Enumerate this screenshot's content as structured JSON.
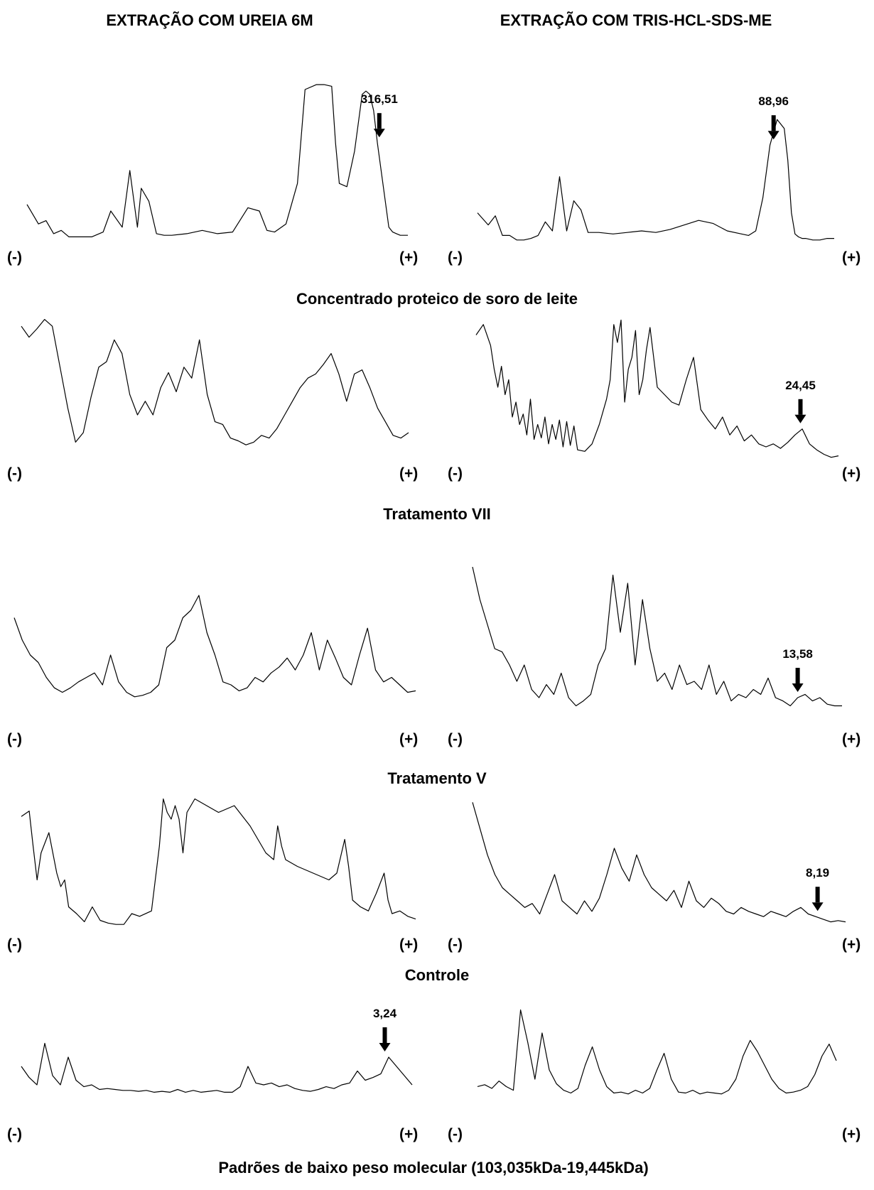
{
  "column_titles": [
    "EXTRAÇÃO COM UREIA 6M",
    "EXTRAÇÃO COM TRIS-HCL-SDS-ME"
  ],
  "pole_labels": {
    "negative": "(-)",
    "positive": "(+)"
  },
  "row_titles": [
    "Concentrado proteico de soro de leite",
    "Tratamento VII",
    "Tratamento V",
    "Controle",
    "Padrões de baixo peso molecular (103,035kDa-19,445kDa)"
  ],
  "chart_data": [
    {
      "type": "line",
      "name": "Concentrado proteico de soro de leite — EXTRAÇÃO COM UREIA 6M",
      "x": [
        0.0,
        0.03,
        0.05,
        0.07,
        0.09,
        0.11,
        0.13,
        0.17,
        0.2,
        0.22,
        0.25,
        0.27,
        0.29,
        0.3,
        0.32,
        0.34,
        0.36,
        0.38,
        0.42,
        0.46,
        0.5,
        0.54,
        0.58,
        0.61,
        0.63,
        0.65,
        0.68,
        0.71,
        0.73,
        0.76,
        0.78,
        0.8,
        0.81,
        0.82,
        0.84,
        0.86,
        0.88,
        0.89,
        0.9,
        0.91,
        0.92,
        0.95,
        0.96,
        0.97,
        0.98,
        0.99,
        1.0
      ],
      "y": [
        0.22,
        0.1,
        0.12,
        0.04,
        0.06,
        0.02,
        0.02,
        0.02,
        0.05,
        0.18,
        0.08,
        0.43,
        0.08,
        0.32,
        0.24,
        0.04,
        0.03,
        0.03,
        0.04,
        0.06,
        0.04,
        0.05,
        0.2,
        0.18,
        0.06,
        0.05,
        0.1,
        0.35,
        0.93,
        0.96,
        0.96,
        0.95,
        0.6,
        0.35,
        0.33,
        0.55,
        0.9,
        0.92,
        0.9,
        0.8,
        0.6,
        0.08,
        0.05,
        0.04,
        0.03,
        0.03,
        0.03
      ],
      "marked_peak": {
        "label": "316,51",
        "x": 0.925
      }
    },
    {
      "type": "line",
      "name": "Concentrado proteico de soro de leite — EXTRAÇÃO COM TRIS-HCL-SDS-ME",
      "x": [
        0.0,
        0.03,
        0.05,
        0.07,
        0.09,
        0.11,
        0.13,
        0.15,
        0.17,
        0.19,
        0.21,
        0.23,
        0.25,
        0.27,
        0.29,
        0.31,
        0.34,
        0.38,
        0.42,
        0.46,
        0.5,
        0.54,
        0.58,
        0.62,
        0.66,
        0.7,
        0.74,
        0.76,
        0.78,
        0.8,
        0.82,
        0.84,
        0.86,
        0.87,
        0.88,
        0.89,
        0.9,
        0.91,
        0.92,
        0.94,
        0.96,
        0.98,
        1.0
      ],
      "y": [
        0.2,
        0.12,
        0.18,
        0.05,
        0.05,
        0.02,
        0.02,
        0.03,
        0.05,
        0.14,
        0.08,
        0.44,
        0.08,
        0.28,
        0.22,
        0.07,
        0.07,
        0.06,
        0.07,
        0.08,
        0.07,
        0.09,
        0.12,
        0.15,
        0.13,
        0.08,
        0.06,
        0.05,
        0.08,
        0.3,
        0.65,
        0.82,
        0.76,
        0.55,
        0.2,
        0.06,
        0.04,
        0.03,
        0.03,
        0.02,
        0.02,
        0.03,
        0.03
      ],
      "marked_peak": {
        "label": "88,96",
        "x": 0.83
      }
    },
    {
      "type": "line",
      "name": "Tratamento VII — EXTRAÇÃO COM UREIA 6M",
      "x": [
        0.0,
        0.02,
        0.04,
        0.06,
        0.08,
        0.1,
        0.12,
        0.14,
        0.16,
        0.18,
        0.2,
        0.22,
        0.24,
        0.26,
        0.28,
        0.3,
        0.32,
        0.34,
        0.36,
        0.38,
        0.4,
        0.42,
        0.44,
        0.46,
        0.48,
        0.5,
        0.52,
        0.54,
        0.56,
        0.58,
        0.6,
        0.62,
        0.64,
        0.66,
        0.68,
        0.7,
        0.72,
        0.74,
        0.76,
        0.78,
        0.8,
        0.82,
        0.84,
        0.86,
        0.88,
        0.9,
        0.92,
        0.94,
        0.96,
        0.98,
        1.0
      ],
      "y": [
        0.9,
        0.82,
        0.88,
        0.95,
        0.9,
        0.6,
        0.3,
        0.05,
        0.12,
        0.38,
        0.6,
        0.64,
        0.8,
        0.7,
        0.4,
        0.25,
        0.35,
        0.25,
        0.45,
        0.56,
        0.42,
        0.6,
        0.52,
        0.8,
        0.4,
        0.2,
        0.18,
        0.08,
        0.06,
        0.03,
        0.05,
        0.1,
        0.08,
        0.15,
        0.25,
        0.35,
        0.45,
        0.52,
        0.55,
        0.62,
        0.7,
        0.55,
        0.35,
        0.55,
        0.58,
        0.45,
        0.3,
        0.2,
        0.1,
        0.08,
        0.12
      ]
    },
    {
      "type": "line",
      "name": "Tratamento VII — EXTRAÇÃO COM TRIS-HCL-SDS-ME",
      "x": [
        0.0,
        0.02,
        0.04,
        0.05,
        0.06,
        0.07,
        0.08,
        0.09,
        0.1,
        0.11,
        0.12,
        0.13,
        0.14,
        0.15,
        0.16,
        0.17,
        0.18,
        0.19,
        0.2,
        0.21,
        0.22,
        0.23,
        0.24,
        0.25,
        0.26,
        0.27,
        0.28,
        0.3,
        0.32,
        0.34,
        0.36,
        0.37,
        0.38,
        0.39,
        0.4,
        0.41,
        0.42,
        0.43,
        0.44,
        0.45,
        0.46,
        0.47,
        0.48,
        0.5,
        0.52,
        0.54,
        0.56,
        0.58,
        0.6,
        0.62,
        0.64,
        0.66,
        0.68,
        0.7,
        0.72,
        0.74,
        0.76,
        0.78,
        0.8,
        0.82,
        0.84,
        0.86,
        0.88,
        0.9,
        0.92,
        0.94,
        0.96,
        0.98,
        1.0
      ],
      "y": [
        0.85,
        0.92,
        0.78,
        0.62,
        0.5,
        0.64,
        0.45,
        0.55,
        0.3,
        0.4,
        0.25,
        0.32,
        0.18,
        0.42,
        0.15,
        0.25,
        0.16,
        0.3,
        0.12,
        0.25,
        0.15,
        0.28,
        0.1,
        0.27,
        0.11,
        0.24,
        0.08,
        0.07,
        0.12,
        0.25,
        0.42,
        0.55,
        0.92,
        0.8,
        0.95,
        0.4,
        0.62,
        0.7,
        0.88,
        0.45,
        0.55,
        0.75,
        0.9,
        0.5,
        0.45,
        0.4,
        0.38,
        0.55,
        0.7,
        0.35,
        0.28,
        0.22,
        0.3,
        0.18,
        0.24,
        0.14,
        0.18,
        0.12,
        0.1,
        0.12,
        0.09,
        0.13,
        0.18,
        0.22,
        0.12,
        0.08,
        0.05,
        0.03,
        0.04
      ],
      "marked_peak": {
        "label": "24,45",
        "x": 0.895
      }
    },
    {
      "type": "line",
      "name": "Tratamento V — EXTRAÇÃO COM UREIA 6M",
      "x": [
        0.0,
        0.02,
        0.04,
        0.06,
        0.08,
        0.1,
        0.12,
        0.14,
        0.16,
        0.18,
        0.2,
        0.22,
        0.24,
        0.26,
        0.28,
        0.3,
        0.32,
        0.34,
        0.36,
        0.38,
        0.4,
        0.42,
        0.44,
        0.46,
        0.48,
        0.5,
        0.52,
        0.54,
        0.56,
        0.58,
        0.6,
        0.62,
        0.64,
        0.66,
        0.68,
        0.7,
        0.72,
        0.74,
        0.76,
        0.78,
        0.8,
        0.82,
        0.84,
        0.86,
        0.88,
        0.9,
        0.92,
        0.94,
        0.96,
        0.98,
        1.0
      ],
      "y": [
        0.55,
        0.4,
        0.3,
        0.25,
        0.15,
        0.08,
        0.05,
        0.08,
        0.12,
        0.15,
        0.18,
        0.1,
        0.3,
        0.12,
        0.05,
        0.02,
        0.03,
        0.05,
        0.1,
        0.35,
        0.4,
        0.55,
        0.6,
        0.7,
        0.45,
        0.3,
        0.12,
        0.1,
        0.06,
        0.08,
        0.15,
        0.12,
        0.18,
        0.22,
        0.28,
        0.2,
        0.3,
        0.45,
        0.2,
        0.4,
        0.28,
        0.15,
        0.1,
        0.3,
        0.48,
        0.2,
        0.12,
        0.15,
        0.1,
        0.05,
        0.06
      ]
    },
    {
      "type": "line",
      "name": "Tratamento V — EXTRAÇÃO COM TRIS-HCL-SDS-ME",
      "x": [
        0.0,
        0.02,
        0.04,
        0.06,
        0.08,
        0.1,
        0.12,
        0.14,
        0.16,
        0.18,
        0.2,
        0.22,
        0.24,
        0.26,
        0.28,
        0.3,
        0.32,
        0.34,
        0.36,
        0.38,
        0.4,
        0.42,
        0.44,
        0.46,
        0.48,
        0.5,
        0.52,
        0.54,
        0.56,
        0.58,
        0.6,
        0.62,
        0.64,
        0.66,
        0.68,
        0.7,
        0.72,
        0.74,
        0.76,
        0.78,
        0.8,
        0.82,
        0.84,
        0.86,
        0.88,
        0.9,
        0.92,
        0.94,
        0.96,
        0.98,
        1.0
      ],
      "y": [
        0.9,
        0.7,
        0.55,
        0.4,
        0.38,
        0.3,
        0.2,
        0.3,
        0.15,
        0.1,
        0.18,
        0.12,
        0.25,
        0.1,
        0.05,
        0.08,
        0.12,
        0.3,
        0.4,
        0.85,
        0.5,
        0.8,
        0.3,
        0.7,
        0.4,
        0.2,
        0.25,
        0.15,
        0.3,
        0.18,
        0.2,
        0.15,
        0.3,
        0.12,
        0.2,
        0.08,
        0.12,
        0.1,
        0.15,
        0.12,
        0.22,
        0.1,
        0.08,
        0.05,
        0.1,
        0.12,
        0.08,
        0.1,
        0.06,
        0.05,
        0.05
      ],
      "marked_peak": {
        "label": "13,58",
        "x": 0.88
      }
    },
    {
      "type": "line",
      "name": "Controle — EXTRAÇÃO COM UREIA 6M",
      "x": [
        0.0,
        0.02,
        0.03,
        0.04,
        0.05,
        0.07,
        0.09,
        0.1,
        0.11,
        0.12,
        0.14,
        0.16,
        0.18,
        0.2,
        0.22,
        0.24,
        0.26,
        0.28,
        0.3,
        0.33,
        0.35,
        0.36,
        0.37,
        0.38,
        0.39,
        0.4,
        0.41,
        0.42,
        0.44,
        0.47,
        0.5,
        0.54,
        0.58,
        0.62,
        0.64,
        0.65,
        0.66,
        0.67,
        0.7,
        0.74,
        0.78,
        0.8,
        0.82,
        0.83,
        0.84,
        0.86,
        0.88,
        0.9,
        0.92,
        0.93,
        0.94,
        0.96,
        0.98,
        1.0
      ],
      "y": [
        0.82,
        0.86,
        0.6,
        0.35,
        0.55,
        0.7,
        0.4,
        0.3,
        0.35,
        0.15,
        0.1,
        0.04,
        0.15,
        0.05,
        0.03,
        0.02,
        0.02,
        0.1,
        0.08,
        0.12,
        0.6,
        0.95,
        0.85,
        0.8,
        0.9,
        0.8,
        0.55,
        0.85,
        0.95,
        0.9,
        0.85,
        0.9,
        0.75,
        0.55,
        0.5,
        0.75,
        0.6,
        0.5,
        0.45,
        0.4,
        0.35,
        0.4,
        0.65,
        0.45,
        0.2,
        0.15,
        0.12,
        0.25,
        0.4,
        0.2,
        0.1,
        0.12,
        0.08,
        0.06
      ]
    },
    {
      "type": "line",
      "name": "Controle — EXTRAÇÃO COM TRIS-HCL-SDS-ME",
      "x": [
        0.0,
        0.02,
        0.04,
        0.06,
        0.08,
        0.1,
        0.12,
        0.14,
        0.16,
        0.18,
        0.2,
        0.22,
        0.24,
        0.26,
        0.28,
        0.3,
        0.32,
        0.34,
        0.36,
        0.38,
        0.4,
        0.42,
        0.44,
        0.46,
        0.48,
        0.5,
        0.52,
        0.54,
        0.56,
        0.58,
        0.6,
        0.62,
        0.64,
        0.66,
        0.68,
        0.7,
        0.72,
        0.74,
        0.76,
        0.78,
        0.8,
        0.82,
        0.84,
        0.86,
        0.88,
        0.9,
        0.92,
        0.94,
        0.96,
        0.98,
        1.0
      ],
      "y": [
        0.95,
        0.75,
        0.55,
        0.4,
        0.3,
        0.25,
        0.2,
        0.15,
        0.18,
        0.1,
        0.25,
        0.4,
        0.2,
        0.15,
        0.1,
        0.2,
        0.12,
        0.22,
        0.4,
        0.6,
        0.45,
        0.35,
        0.55,
        0.4,
        0.3,
        0.25,
        0.2,
        0.28,
        0.15,
        0.35,
        0.2,
        0.15,
        0.22,
        0.18,
        0.12,
        0.1,
        0.15,
        0.12,
        0.1,
        0.08,
        0.12,
        0.1,
        0.08,
        0.12,
        0.15,
        0.1,
        0.08,
        0.06,
        0.04,
        0.05,
        0.04
      ],
      "marked_peak": {
        "label": "8,19",
        "x": 0.925
      }
    },
    {
      "type": "line",
      "name": "Padrões de baixo peso molecular (103,035kDa-19,445kDa) — EXTRAÇÃO COM UREIA 6M",
      "x": [
        0.0,
        0.02,
        0.04,
        0.06,
        0.08,
        0.1,
        0.12,
        0.14,
        0.16,
        0.18,
        0.2,
        0.22,
        0.24,
        0.26,
        0.28,
        0.3,
        0.32,
        0.34,
        0.36,
        0.38,
        0.4,
        0.42,
        0.44,
        0.46,
        0.48,
        0.5,
        0.52,
        0.54,
        0.56,
        0.58,
        0.6,
        0.62,
        0.64,
        0.66,
        0.68,
        0.7,
        0.72,
        0.74,
        0.76,
        0.78,
        0.8,
        0.82,
        0.84,
        0.86,
        0.88,
        0.9,
        0.92,
        0.94,
        0.96,
        0.98,
        1.0
      ],
      "y": [
        0.3,
        0.18,
        0.1,
        0.55,
        0.2,
        0.1,
        0.4,
        0.15,
        0.08,
        0.1,
        0.05,
        0.06,
        0.05,
        0.04,
        0.04,
        0.03,
        0.04,
        0.02,
        0.03,
        0.02,
        0.05,
        0.02,
        0.04,
        0.02,
        0.03,
        0.04,
        0.02,
        0.02,
        0.08,
        0.3,
        0.12,
        0.1,
        0.12,
        0.08,
        0.1,
        0.06,
        0.04,
        0.03,
        0.05,
        0.08,
        0.06,
        0.1,
        0.12,
        0.25,
        0.15,
        0.18,
        0.22,
        0.4,
        0.3,
        0.2,
        0.1
      ],
      "marked_peak": {
        "label": "3,24",
        "x": 0.93
      }
    },
    {
      "type": "line",
      "name": "Padrões de baixo peso molecular (103,035kDa-19,445kDa) — EXTRAÇÃO COM TRIS-HCL-SDS-ME",
      "x": [
        0.0,
        0.02,
        0.04,
        0.06,
        0.08,
        0.1,
        0.12,
        0.14,
        0.16,
        0.18,
        0.2,
        0.22,
        0.24,
        0.26,
        0.28,
        0.3,
        0.32,
        0.34,
        0.36,
        0.38,
        0.4,
        0.42,
        0.44,
        0.46,
        0.48,
        0.5,
        0.52,
        0.54,
        0.56,
        0.58,
        0.6,
        0.62,
        0.64,
        0.66,
        0.68,
        0.7,
        0.72,
        0.74,
        0.76,
        0.78,
        0.8,
        0.82,
        0.84,
        0.86,
        0.88,
        0.9,
        0.92,
        0.94,
        0.96,
        0.98,
        1.0
      ],
      "y": [
        0.12,
        0.14,
        0.1,
        0.18,
        0.12,
        0.08,
        0.95,
        0.6,
        0.2,
        0.7,
        0.3,
        0.15,
        0.08,
        0.05,
        0.1,
        0.35,
        0.55,
        0.3,
        0.12,
        0.05,
        0.06,
        0.04,
        0.08,
        0.05,
        0.1,
        0.3,
        0.48,
        0.2,
        0.06,
        0.05,
        0.08,
        0.04,
        0.06,
        0.05,
        0.04,
        0.08,
        0.2,
        0.45,
        0.62,
        0.5,
        0.35,
        0.2,
        0.1,
        0.05,
        0.06,
        0.08,
        0.12,
        0.25,
        0.45,
        0.58,
        0.4
      ]
    }
  ]
}
